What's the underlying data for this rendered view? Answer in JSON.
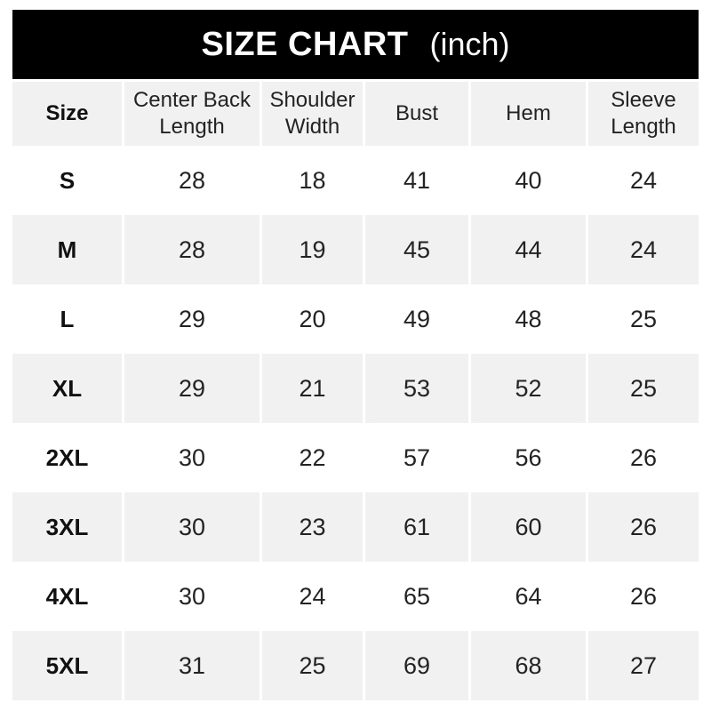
{
  "title": {
    "main": "SIZE CHART",
    "unit": "(inch)"
  },
  "table": {
    "columns": [
      "Size",
      "Center Back Length",
      "Shoulder Width",
      "Bust",
      "Hem",
      "Sleeve Length"
    ],
    "rows": [
      {
        "size": "S",
        "values": [
          "28",
          "18",
          "41",
          "40",
          "24"
        ]
      },
      {
        "size": "M",
        "values": [
          "28",
          "19",
          "45",
          "44",
          "24"
        ]
      },
      {
        "size": "L",
        "values": [
          "29",
          "20",
          "49",
          "48",
          "25"
        ]
      },
      {
        "size": "XL",
        "values": [
          "29",
          "21",
          "53",
          "52",
          "25"
        ]
      },
      {
        "size": "2XL",
        "values": [
          "30",
          "22",
          "57",
          "56",
          "26"
        ]
      },
      {
        "size": "3XL",
        "values": [
          "30",
          "23",
          "61",
          "60",
          "26"
        ]
      },
      {
        "size": "4XL",
        "values": [
          "30",
          "24",
          "65",
          "64",
          "26"
        ]
      },
      {
        "size": "5XL",
        "values": [
          "31",
          "25",
          "69",
          "68",
          "27"
        ]
      }
    ]
  },
  "colors": {
    "title_bar_bg": "#000000",
    "title_text": "#ffffff",
    "alt_row_bg": "#f1f1f1",
    "body_bg": "#ffffff",
    "text": "#232323"
  },
  "chart_data": {
    "type": "table",
    "title": "SIZE CHART (inch)",
    "columns": [
      "Size",
      "Center Back Length",
      "Shoulder Width",
      "Bust",
      "Hem",
      "Sleeve Length"
    ],
    "rows": [
      [
        "S",
        28,
        18,
        41,
        40,
        24
      ],
      [
        "M",
        28,
        19,
        45,
        44,
        24
      ],
      [
        "L",
        29,
        20,
        49,
        48,
        25
      ],
      [
        "XL",
        29,
        21,
        53,
        52,
        25
      ],
      [
        "2XL",
        30,
        22,
        57,
        56,
        26
      ],
      [
        "3XL",
        30,
        23,
        61,
        60,
        26
      ],
      [
        "4XL",
        30,
        24,
        65,
        64,
        26
      ],
      [
        "5XL",
        31,
        25,
        69,
        68,
        27
      ]
    ],
    "units": "inch",
    "layout": {
      "striped": true,
      "header_position": "top",
      "first_column_bold": true
    }
  }
}
